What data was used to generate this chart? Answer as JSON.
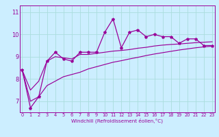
{
  "xlabel": "Windchill (Refroidissement éolien,°C)",
  "background_color": "#cceeff",
  "grid_color": "#aadddd",
  "line_color": "#990099",
  "x_hourly": [
    0,
    1,
    2,
    3,
    4,
    5,
    6,
    7,
    8,
    9,
    10,
    11,
    12,
    13,
    14,
    15,
    16,
    17,
    18,
    19,
    20,
    21,
    22,
    23
  ],
  "y_measured": [
    8.4,
    6.7,
    7.2,
    8.8,
    9.2,
    8.9,
    8.8,
    9.2,
    9.2,
    9.2,
    10.1,
    10.7,
    9.4,
    10.1,
    10.2,
    9.9,
    10.0,
    9.9,
    9.9,
    9.6,
    9.8,
    9.8,
    9.5,
    9.5
  ],
  "y_line1": [
    8.4,
    7.5,
    7.9,
    8.8,
    9.0,
    8.95,
    8.9,
    9.1,
    9.1,
    9.15,
    9.2,
    9.25,
    9.28,
    9.32,
    9.38,
    9.42,
    9.48,
    9.52,
    9.55,
    9.57,
    9.6,
    9.63,
    9.65,
    9.67
  ],
  "y_line2": [
    8.4,
    7.0,
    7.2,
    7.7,
    7.9,
    8.1,
    8.2,
    8.3,
    8.45,
    8.55,
    8.65,
    8.75,
    8.82,
    8.9,
    8.97,
    9.05,
    9.12,
    9.18,
    9.24,
    9.3,
    9.35,
    9.4,
    9.44,
    9.47
  ],
  "yticks": [
    7,
    8,
    9,
    10,
    11
  ],
  "xticks": [
    0,
    1,
    2,
    3,
    4,
    5,
    6,
    7,
    8,
    9,
    10,
    11,
    12,
    13,
    14,
    15,
    16,
    17,
    18,
    19,
    20,
    21,
    22,
    23
  ],
  "xlim": [
    -0.3,
    23.3
  ],
  "ylim": [
    6.5,
    11.3
  ]
}
